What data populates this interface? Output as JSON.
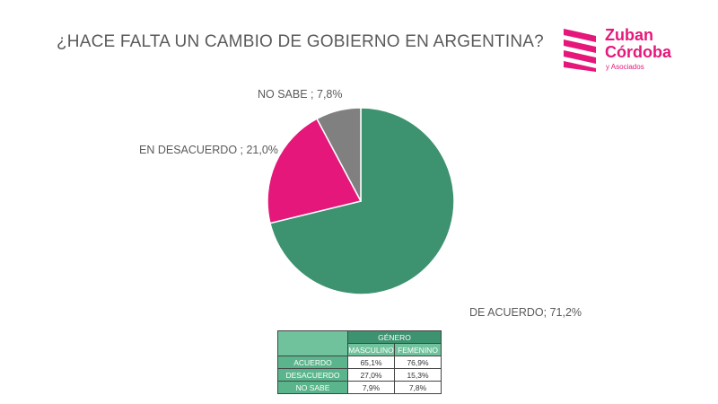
{
  "title": "¿HACE FALTA UN CAMBIO DE GOBIERNO EN ARGENTINA?",
  "logo": {
    "line1": "Zuban",
    "line2": "Córdoba",
    "line3": "y Asociados",
    "color": "#e5177a"
  },
  "chart_data": {
    "type": "pie",
    "slices": [
      {
        "label": "DE ACUERDO; 71,2%",
        "value": 71.2,
        "color": "#3d9270"
      },
      {
        "label": "EN DESACUERDO ; 21,0%",
        "value": 21.0,
        "color": "#e5177a"
      },
      {
        "label": "NO SABE ; 7,8%",
        "value": 7.8,
        "color": "#808080"
      }
    ]
  },
  "table": {
    "group_header": "GÉNERO",
    "columns": [
      "MASCULINO",
      "FEMENINO"
    ],
    "rows": [
      {
        "label": "ACUERDO",
        "values": [
          "65,1%",
          "76,9%"
        ]
      },
      {
        "label": "DESACUERDO",
        "values": [
          "27,0%",
          "15,3%"
        ]
      },
      {
        "label": "NO SABE",
        "values": [
          "7,9%",
          "7,8%"
        ]
      }
    ]
  }
}
